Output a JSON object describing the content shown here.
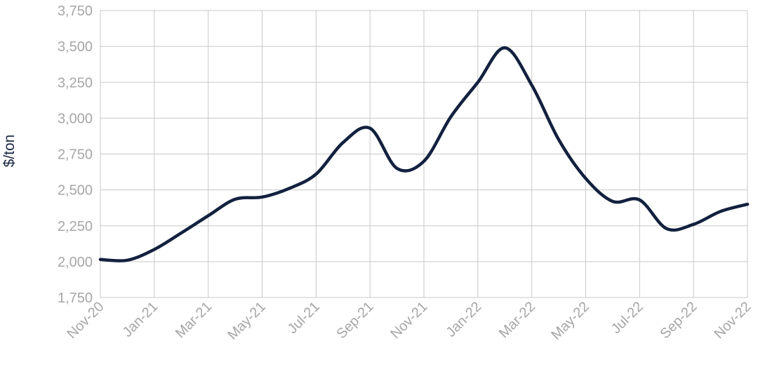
{
  "chart_data": {
    "type": "line",
    "title": "",
    "xlabel": "",
    "ylabel": "$/ton",
    "ylim": [
      1750,
      3750
    ],
    "yticks": [
      1750,
      2000,
      2250,
      2500,
      2750,
      3000,
      3250,
      3500,
      3750
    ],
    "ytick_labels": [
      "1,750",
      "2,000",
      "2,250",
      "2,500",
      "2,750",
      "3,000",
      "3,250",
      "3,500",
      "3,750"
    ],
    "x_tick_labels": [
      "Nov-20",
      "Jan-21",
      "Mar-21",
      "May-21",
      "Jul-21",
      "Sep-21",
      "Nov-21",
      "Jan-22",
      "Mar-22",
      "May-22",
      "Jul-22",
      "Sep-22",
      "Nov-22"
    ],
    "grid": true,
    "legend": "none",
    "colors": {
      "line": "#13213f",
      "grid": "#c8c8c8",
      "tick_text": "#a6a6a6",
      "label_text": "#1a2744"
    },
    "x": [
      "Nov-20",
      "Dec-20",
      "Jan-21",
      "Feb-21",
      "Mar-21",
      "Apr-21",
      "May-21",
      "Jun-21",
      "Jul-21",
      "Aug-21",
      "Sep-21",
      "Oct-21",
      "Nov-21",
      "Dec-21",
      "Jan-22",
      "Feb-22",
      "Mar-22",
      "Apr-22",
      "May-22",
      "Jun-22",
      "Jul-22",
      "Aug-22",
      "Sep-22",
      "Oct-22",
      "Nov-22"
    ],
    "series": [
      {
        "values": [
          2015,
          2010,
          2085,
          2200,
          2320,
          2435,
          2450,
          2510,
          2610,
          2830,
          2930,
          2650,
          2700,
          3010,
          3250,
          3490,
          3230,
          2850,
          2580,
          2420,
          2430,
          2230,
          2260,
          2350,
          2400
        ]
      }
    ]
  }
}
